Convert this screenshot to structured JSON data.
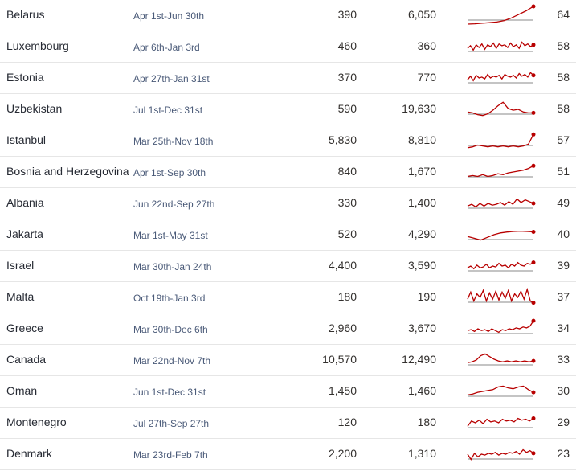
{
  "chart_data": {
    "type": "table",
    "rows": [
      {
        "name": "Belarus",
        "period": "Apr 1st-Jun 30th",
        "deaths": "390",
        "expected": "6,050",
        "value": "64",
        "trend": [
          0,
          0.02,
          0.05,
          0.08,
          0.12,
          0.2,
          0.35,
          0.55,
          0.75,
          1
        ]
      },
      {
        "name": "Luxembourg",
        "period": "Apr 6th-Jan 3rd",
        "deaths": "460",
        "expected": "360",
        "value": "58",
        "trend": [
          0.4,
          0.55,
          0.3,
          0.6,
          0.45,
          0.65,
          0.35,
          0.6,
          0.5,
          0.7,
          0.4,
          0.65,
          0.55,
          0.6,
          0.45,
          0.7,
          0.5,
          0.6,
          0.4,
          0.75,
          0.55,
          0.65,
          0.5,
          0.6
        ]
      },
      {
        "name": "Estonia",
        "period": "Apr 27th-Jan 31st",
        "deaths": "370",
        "expected": "770",
        "value": "58",
        "trend": [
          0.4,
          0.6,
          0.35,
          0.65,
          0.5,
          0.55,
          0.45,
          0.7,
          0.5,
          0.6,
          0.55,
          0.65,
          0.45,
          0.7,
          0.6,
          0.55,
          0.65,
          0.5,
          0.75,
          0.6,
          0.7,
          0.55,
          0.8,
          0.65
        ]
      },
      {
        "name": "Uzbekistan",
        "period": "Jul 1st-Dec 31st",
        "deaths": "590",
        "expected": "19,630",
        "value": "58",
        "trend": [
          0.35,
          0.3,
          0.2,
          0.15,
          0.25,
          0.45,
          0.7,
          0.9,
          0.55,
          0.45,
          0.5,
          0.35,
          0.3,
          0.3
        ]
      },
      {
        "name": "Istanbul",
        "period": "Mar 25th-Nov 18th",
        "deaths": "5,830",
        "expected": "8,810",
        "value": "57",
        "trend": [
          0.1,
          0.15,
          0.25,
          0.2,
          0.15,
          0.2,
          0.15,
          0.2,
          0.15,
          0.2,
          0.15,
          0.2,
          0.3,
          0.85
        ]
      },
      {
        "name": "Bosnia and Herzegovina",
        "period": "Apr 1st-Sep 30th",
        "deaths": "840",
        "expected": "1,670",
        "value": "51",
        "trend": [
          0.25,
          0.3,
          0.25,
          0.35,
          0.25,
          0.3,
          0.4,
          0.35,
          0.45,
          0.5,
          0.55,
          0.6,
          0.7,
          0.85
        ]
      },
      {
        "name": "Albania",
        "period": "Jun 22nd-Sep 27th",
        "deaths": "330",
        "expected": "1,400",
        "value": "49",
        "trend": [
          0.35,
          0.45,
          0.3,
          0.5,
          0.35,
          0.5,
          0.4,
          0.45,
          0.55,
          0.4,
          0.6,
          0.45,
          0.75,
          0.55,
          0.7,
          0.6,
          0.5
        ]
      },
      {
        "name": "Jakarta",
        "period": "Mar 1st-May 31st",
        "deaths": "520",
        "expected": "4,290",
        "value": "40",
        "trend": [
          0.4,
          0.3,
          0.2,
          0.35,
          0.5,
          0.6,
          0.65,
          0.68,
          0.7,
          0.68,
          0.66
        ]
      },
      {
        "name": "Israel",
        "period": "Mar 30th-Jan 24th",
        "deaths": "4,400",
        "expected": "3,590",
        "value": "39",
        "trend": [
          0.4,
          0.5,
          0.35,
          0.55,
          0.4,
          0.45,
          0.6,
          0.4,
          0.5,
          0.45,
          0.65,
          0.5,
          0.55,
          0.4,
          0.6,
          0.5,
          0.7,
          0.55,
          0.5,
          0.65,
          0.6,
          0.7
        ]
      },
      {
        "name": "Malta",
        "period": "Oct 19th-Jan 3rd",
        "deaths": "180",
        "expected": "190",
        "value": "37",
        "trend": [
          0.4,
          0.8,
          0.3,
          0.7,
          0.5,
          0.9,
          0.3,
          0.75,
          0.4,
          0.85,
          0.35,
          0.8,
          0.45,
          0.9,
          0.3,
          0.7,
          0.5,
          0.85,
          0.4,
          0.95,
          0.3,
          0.2
        ]
      },
      {
        "name": "Greece",
        "period": "Mar 30th-Dec 6th",
        "deaths": "2,960",
        "expected": "3,670",
        "value": "34",
        "trend": [
          0.4,
          0.45,
          0.35,
          0.5,
          0.4,
          0.45,
          0.35,
          0.5,
          0.4,
          0.3,
          0.45,
          0.4,
          0.5,
          0.45,
          0.55,
          0.5,
          0.6,
          0.55,
          0.65,
          0.95
        ]
      },
      {
        "name": "Canada",
        "period": "Mar 22nd-Nov 7th",
        "deaths": "10,570",
        "expected": "12,490",
        "value": "33",
        "trend": [
          0.35,
          0.4,
          0.5,
          0.75,
          0.85,
          0.7,
          0.55,
          0.45,
          0.4,
          0.45,
          0.4,
          0.45,
          0.4,
          0.45,
          0.4,
          0.45
        ]
      },
      {
        "name": "Oman",
        "period": "Jun 1st-Dec 31st",
        "deaths": "1,450",
        "expected": "1,460",
        "value": "30",
        "trend": [
          0.3,
          0.35,
          0.45,
          0.5,
          0.55,
          0.6,
          0.75,
          0.8,
          0.7,
          0.65,
          0.75,
          0.8,
          0.6,
          0.45
        ]
      },
      {
        "name": "Montenegro",
        "period": "Jul 27th-Sep 27th",
        "deaths": "120",
        "expected": "180",
        "value": "29",
        "trend": [
          0.3,
          0.6,
          0.5,
          0.65,
          0.45,
          0.7,
          0.55,
          0.6,
          0.5,
          0.7,
          0.6,
          0.65,
          0.55,
          0.75,
          0.65,
          0.7,
          0.6,
          0.75
        ]
      },
      {
        "name": "Denmark",
        "period": "Mar 23rd-Feb 7th",
        "deaths": "2,200",
        "expected": "1,310",
        "value": "23",
        "trend": [
          0.5,
          0.2,
          0.55,
          0.35,
          0.5,
          0.45,
          0.55,
          0.5,
          0.6,
          0.45,
          0.55,
          0.5,
          0.6,
          0.55,
          0.65,
          0.5,
          0.75,
          0.6,
          0.7,
          0.55
        ]
      }
    ]
  },
  "colors": {
    "line": "#b80000",
    "baseline": "#8a8a8a"
  }
}
